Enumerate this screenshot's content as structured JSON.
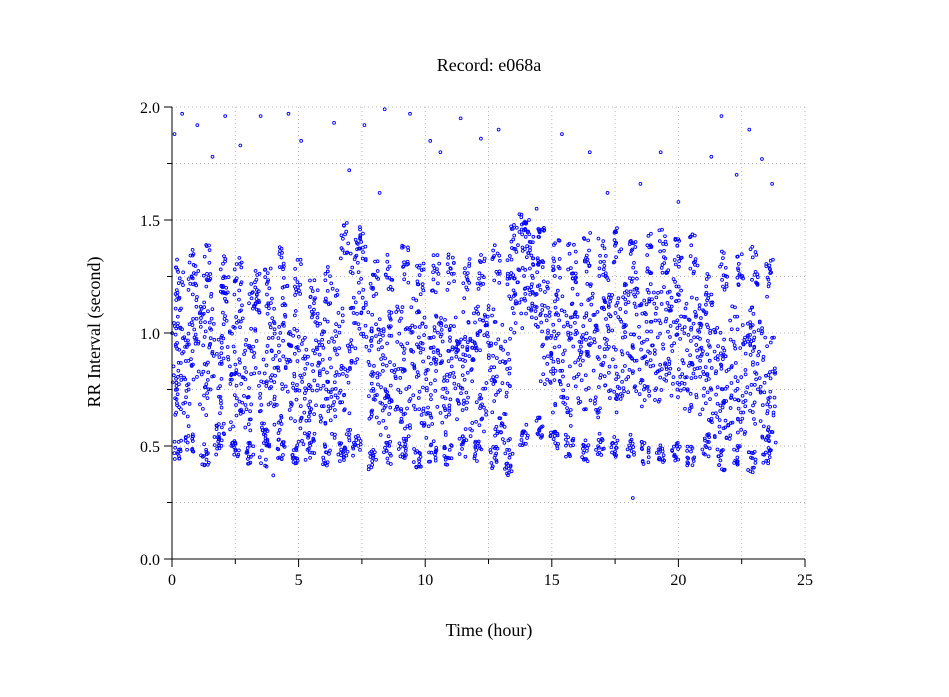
{
  "chart_data": {
    "type": "scatter",
    "title": "Record:  e068a",
    "xlabel": "Time (hour)",
    "ylabel": "RR Interval (second)",
    "xlim": [
      0,
      25
    ],
    "ylim": [
      0.0,
      2.0
    ],
    "x_ticks": [
      0,
      5,
      10,
      15,
      20,
      25
    ],
    "x_tick_labels": [
      "0",
      "5",
      "10",
      "15",
      "20",
      "25"
    ],
    "x_minor_ticks": [
      2.5,
      7.5,
      12.5,
      17.5,
      22.5
    ],
    "y_ticks": [
      0.0,
      0.5,
      1.0,
      1.5,
      2.0
    ],
    "y_tick_labels": [
      "0.0",
      "0.5",
      "1.0",
      "1.5",
      "2.0"
    ],
    "y_minor_ticks": [
      0.25,
      0.75,
      1.25,
      1.75
    ],
    "grid": true,
    "grid_style": "dotted",
    "marker": "open-circle",
    "marker_color": "#0000ff",
    "series": [
      {
        "x": [
          0.1,
          0.3,
          0.6,
          0.9,
          1.2,
          1.5,
          1.8,
          2.1,
          2.4,
          2.7,
          3.0,
          3.3,
          3.6,
          3.9,
          4.2,
          4.5,
          4.8,
          5.1,
          5.4,
          5.7,
          6.0,
          6.3,
          6.6,
          6.9,
          7.2,
          7.5,
          7.8,
          8.1,
          8.4,
          8.7,
          9.0,
          9.3,
          9.6,
          9.9,
          10.2,
          10.5,
          10.8,
          11.1,
          11.4,
          11.7,
          12.0,
          12.3,
          12.6,
          12.9,
          13.2,
          13.5,
          13.8,
          14.1,
          14.4,
          14.7,
          15.0,
          15.3,
          15.6,
          15.9,
          16.2,
          16.5,
          16.8,
          17.1,
          17.4,
          17.7,
          18.0,
          18.3,
          18.6,
          18.9,
          19.2,
          19.5,
          19.8,
          20.1,
          20.4,
          20.7,
          21.0,
          21.3,
          21.6,
          21.9,
          22.2,
          22.5,
          22.8,
          23.1,
          23.4,
          23.7
        ],
        "y": [
          0.85,
          0.92,
          0.78,
          1.05,
          0.88,
          0.95,
          0.72,
          1.1,
          0.83,
          0.9,
          0.76,
          1.02,
          0.64,
          0.93,
          0.8,
          1.0,
          0.86,
          0.74,
          0.68,
          0.9,
          0.82,
          0.77,
          0.95,
          0.7,
          1.12,
          1.2,
          0.88,
          0.85,
          0.8,
          0.9,
          0.86,
          0.78,
          0.92,
          0.84,
          0.75,
          0.88,
          0.8,
          0.83,
          0.9,
          0.79,
          0.86,
          0.82,
          0.88,
          0.8,
          0.72,
          1.22,
          1.28,
          1.3,
          1.24,
          0.98,
          0.9,
          0.95,
          0.84,
          1.0,
          0.92,
          0.96,
          0.88,
          1.02,
          0.94,
          0.9,
          0.98,
          1.0,
          0.92,
          0.96,
          0.94,
          1.02,
          0.98,
          0.95,
          0.9,
          0.96,
          0.85,
          0.78,
          0.82,
          0.74,
          0.86,
          0.8,
          0.88,
          0.84,
          0.78,
          0.72
        ]
      },
      {
        "x": [
          0.2,
          0.7,
          1.3,
          1.9,
          2.5,
          3.1,
          3.7,
          4.3,
          4.9,
          5.5,
          6.1,
          6.7,
          7.3,
          7.9,
          8.5,
          9.1,
          9.7,
          10.3,
          10.9,
          11.5,
          12.1,
          12.7,
          13.3,
          13.9,
          14.5,
          15.1,
          15.7,
          16.3,
          16.9,
          17.5,
          18.1,
          18.7,
          19.3,
          19.9,
          20.5,
          21.1,
          21.7,
          22.3,
          22.9,
          23.5
        ],
        "y": [
          0.48,
          0.52,
          0.46,
          0.55,
          0.5,
          0.47,
          0.53,
          0.49,
          0.45,
          0.51,
          0.46,
          0.48,
          0.5,
          0.44,
          0.47,
          0.49,
          0.45,
          0.48,
          0.46,
          0.5,
          0.47,
          0.45,
          0.42,
          0.55,
          0.58,
          0.52,
          0.5,
          0.48,
          0.51,
          0.49,
          0.5,
          0.47,
          0.46,
          0.48,
          0.45,
          0.5,
          0.44,
          0.46,
          0.43,
          0.45
        ]
      },
      {
        "x": [
          0.3,
          0.8,
          1.4,
          2.0,
          2.6,
          3.2,
          3.8,
          4.4,
          5.0,
          5.6,
          6.2,
          6.8,
          7.4,
          8.0,
          8.6,
          9.2,
          9.8,
          10.4,
          11.0,
          11.6,
          12.2,
          12.8,
          13.4,
          14.0,
          14.6,
          15.2,
          15.8,
          16.4,
          17.0,
          17.6,
          18.2,
          18.8,
          19.4,
          20.0,
          20.6,
          21.2,
          21.8,
          22.4,
          23.0,
          23.6
        ],
        "y": [
          1.25,
          1.28,
          1.3,
          1.22,
          1.26,
          1.18,
          1.2,
          1.29,
          1.24,
          1.15,
          1.21,
          1.4,
          1.38,
          1.25,
          1.27,
          1.3,
          1.22,
          1.26,
          1.28,
          1.24,
          1.27,
          1.3,
          1.25,
          1.42,
          1.38,
          1.33,
          1.31,
          1.36,
          1.34,
          1.38,
          1.32,
          1.35,
          1.37,
          1.33,
          1.35,
          1.2,
          1.28,
          1.26,
          1.3,
          1.24
        ]
      },
      {
        "x": [
          0.1,
          0.4,
          1.0,
          1.6,
          2.1,
          2.7,
          3.5,
          4.6,
          5.1,
          6.4,
          7.0,
          7.6,
          8.2,
          8.4,
          9.4,
          10.2,
          10.6,
          11.4,
          12.2,
          12.9,
          14.4,
          15.4,
          16.5,
          17.2,
          18.5,
          19.3,
          20.0,
          21.3,
          21.7,
          22.3,
          22.8,
          23.3,
          23.7
        ],
        "y": [
          1.88,
          1.97,
          1.92,
          1.78,
          1.96,
          1.83,
          1.96,
          1.97,
          1.85,
          1.93,
          1.72,
          1.92,
          1.62,
          1.99,
          1.97,
          1.85,
          1.8,
          1.95,
          1.86,
          1.9,
          1.55,
          1.88,
          1.8,
          1.62,
          1.66,
          1.8,
          1.58,
          1.78,
          1.96,
          1.7,
          1.9,
          1.77,
          1.66
        ]
      },
      {
        "x": [
          4.0,
          18.2
        ],
        "y": [
          0.37,
          0.27
        ]
      }
    ]
  }
}
